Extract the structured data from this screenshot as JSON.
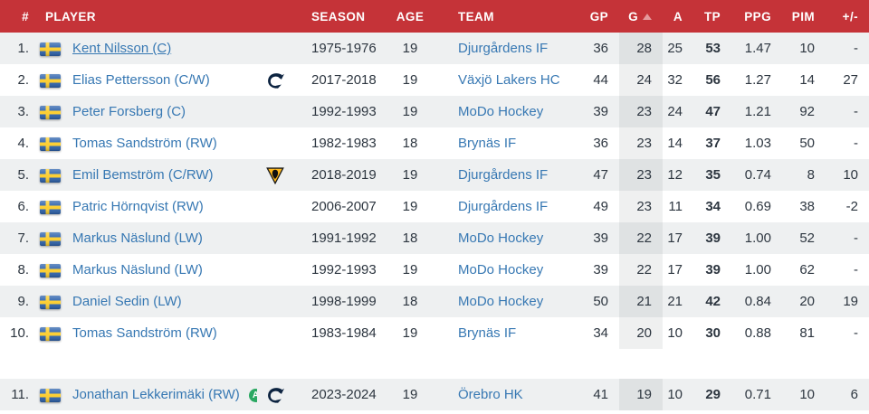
{
  "colors": {
    "header_bg": "#c53338",
    "header_text": "#ffffff",
    "stripe_row_bg": "#eef0f1",
    "link_blue": "#3778b3",
    "text_dark": "#2d3640",
    "sort_arrow": "#e59a9c",
    "active_badge_green": "#2aa862",
    "flag_blue": "#2e63ad",
    "flag_yellow": "#fdcf30"
  },
  "header": {
    "columns": {
      "rank": "#",
      "player": "PLAYER",
      "season": "SEASON",
      "age": "AGE",
      "team": "TEAM",
      "gp": "GP",
      "g": "G",
      "a": "A",
      "tp": "TP",
      "ppg": "PPG",
      "pim": "PIM",
      "plusminus": "+/-"
    },
    "sort": {
      "column": "G",
      "direction": "ascending-arrow-up"
    }
  },
  "rows": [
    {
      "rank": "1.",
      "flag": "sweden",
      "player": "Kent Nilsson (C)",
      "underline": true,
      "badge": null,
      "logo": null,
      "season": "1975-1976",
      "age": "19",
      "team": "Djurgårdens IF",
      "gp": "36",
      "g": "28",
      "a": "25",
      "tp": "53",
      "ppg": "1.47",
      "pim": "10",
      "pm": "-"
    },
    {
      "rank": "2.",
      "flag": "sweden",
      "player": "Elias Pettersson (C/W)",
      "underline": false,
      "badge": null,
      "logo": "canucks",
      "season": "2017-2018",
      "age": "19",
      "team": "Växjö Lakers HC",
      "gp": "44",
      "g": "24",
      "a": "32",
      "tp": "56",
      "ppg": "1.27",
      "pim": "14",
      "pm": "27"
    },
    {
      "rank": "3.",
      "flag": "sweden",
      "player": "Peter Forsberg (C)",
      "underline": false,
      "badge": null,
      "logo": null,
      "season": "1992-1993",
      "age": "19",
      "team": "MoDo Hockey",
      "gp": "39",
      "g": "23",
      "a": "24",
      "tp": "47",
      "ppg": "1.21",
      "pim": "92",
      "pm": "-"
    },
    {
      "rank": "4.",
      "flag": "sweden",
      "player": "Tomas Sandström (RW)",
      "underline": false,
      "badge": null,
      "logo": null,
      "season": "1982-1983",
      "age": "18",
      "team": "Brynäs IF",
      "gp": "36",
      "g": "23",
      "a": "14",
      "tp": "37",
      "ppg": "1.03",
      "pim": "50",
      "pm": "-"
    },
    {
      "rank": "5.",
      "flag": "sweden",
      "player": "Emil Bemström (C/RW)",
      "underline": false,
      "badge": null,
      "logo": "penguins",
      "season": "2018-2019",
      "age": "19",
      "team": "Djurgårdens IF",
      "gp": "47",
      "g": "23",
      "a": "12",
      "tp": "35",
      "ppg": "0.74",
      "pim": "8",
      "pm": "10"
    },
    {
      "rank": "6.",
      "flag": "sweden",
      "player": "Patric Hörnqvist (RW)",
      "underline": false,
      "badge": null,
      "logo": null,
      "season": "2006-2007",
      "age": "19",
      "team": "Djurgårdens IF",
      "gp": "49",
      "g": "23",
      "a": "11",
      "tp": "34",
      "ppg": "0.69",
      "pim": "38",
      "pm": "-2"
    },
    {
      "rank": "7.",
      "flag": "sweden",
      "player": "Markus Näslund (LW)",
      "underline": false,
      "badge": null,
      "logo": null,
      "season": "1991-1992",
      "age": "18",
      "team": "MoDo Hockey",
      "gp": "39",
      "g": "22",
      "a": "17",
      "tp": "39",
      "ppg": "1.00",
      "pim": "52",
      "pm": "-"
    },
    {
      "rank": "8.",
      "flag": "sweden",
      "player": "Markus Näslund (LW)",
      "underline": false,
      "badge": null,
      "logo": null,
      "season": "1992-1993",
      "age": "19",
      "team": "MoDo Hockey",
      "gp": "39",
      "g": "22",
      "a": "17",
      "tp": "39",
      "ppg": "1.00",
      "pim": "62",
      "pm": "-"
    },
    {
      "rank": "9.",
      "flag": "sweden",
      "player": "Daniel Sedin (LW)",
      "underline": false,
      "badge": null,
      "logo": null,
      "season": "1998-1999",
      "age": "18",
      "team": "MoDo Hockey",
      "gp": "50",
      "g": "21",
      "a": "21",
      "tp": "42",
      "ppg": "0.84",
      "pim": "20",
      "pm": "19"
    },
    {
      "rank": "10.",
      "flag": "sweden",
      "player": "Tomas Sandström (RW)",
      "underline": false,
      "badge": null,
      "logo": null,
      "season": "1983-1984",
      "age": "19",
      "team": "Brynäs IF",
      "gp": "34",
      "g": "20",
      "a": "10",
      "tp": "30",
      "ppg": "0.88",
      "pim": "81",
      "pm": "-"
    },
    {
      "rank": "11.",
      "flag": "sweden",
      "player": "Jonathan Lekkerimäki (RW)",
      "underline": false,
      "badge": "A",
      "logo": "canucks",
      "season": "2023-2024",
      "age": "19",
      "team": "Örebro HK",
      "gp": "41",
      "g": "19",
      "a": "10",
      "tp": "29",
      "ppg": "0.71",
      "pim": "10",
      "pm": "6",
      "gap_before": true
    }
  ]
}
